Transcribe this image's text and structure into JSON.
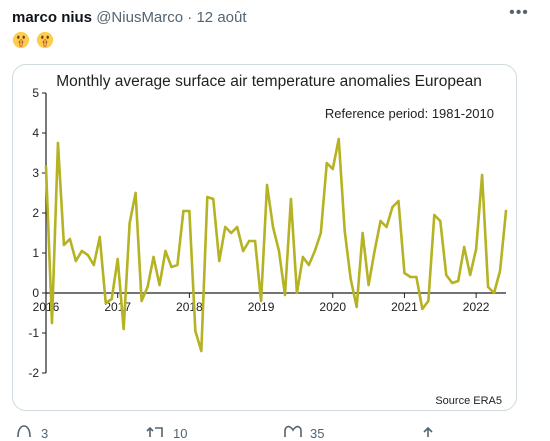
{
  "tweet": {
    "author_name": "marco nius",
    "author_handle": "@NiusMarco",
    "separator": "·",
    "date": "12 août",
    "more_icon": "more-icon",
    "emoji_icon": "shushing-face-icon",
    "emoji_count": 2
  },
  "chart_data": {
    "type": "line",
    "title": "Monthly average surface air temperature anomalies European",
    "annotation": "Reference period: 1981-2010",
    "source": "Source ERA5",
    "xlabel": "",
    "ylabel": "",
    "ylim": [
      -2,
      5
    ],
    "y_ticks": [
      "-2",
      "-1",
      "0",
      "1",
      "2",
      "3",
      "4",
      "5"
    ],
    "x_ticks": [
      "2016",
      "2017",
      "2018",
      "2019",
      "2020",
      "2021",
      "2022"
    ],
    "x_start_year": 2016,
    "grid": false,
    "line_color": "#b5b223",
    "series": [
      {
        "values": [
          3.15,
          -0.75,
          3.75,
          1.2,
          1.35,
          0.8,
          1.05,
          0.95,
          0.7,
          1.4,
          -0.25,
          -0.15,
          0.85,
          -0.9,
          1.75,
          2.5,
          -0.2,
          0.15,
          0.9,
          0.2,
          1.05,
          0.65,
          0.7,
          2.05,
          2.05,
          -0.95,
          -1.45,
          2.4,
          2.35,
          0.8,
          1.65,
          1.5,
          1.65,
          1.05,
          1.3,
          1.3,
          -0.2,
          2.7,
          1.65,
          1.05,
          -0.05,
          2.35,
          0.0,
          0.9,
          0.7,
          1.05,
          1.5,
          3.25,
          3.1,
          3.85,
          1.55,
          0.35,
          -0.35,
          1.5,
          0.2,
          1.05,
          1.8,
          1.65,
          2.15,
          2.3,
          0.5,
          0.4,
          0.4,
          -0.4,
          -0.2,
          1.95,
          1.8,
          0.45,
          0.25,
          0.3,
          1.15,
          0.45,
          1.1,
          2.95,
          0.15,
          0.0,
          0.55,
          2.05
        ]
      }
    ]
  },
  "actions": {
    "reply_count": "3",
    "retweet_count": "10",
    "like_count": "35",
    "reply_icon": "reply-icon",
    "retweet_icon": "retweet-icon",
    "like_icon": "heart-icon",
    "share_icon": "share-icon"
  }
}
